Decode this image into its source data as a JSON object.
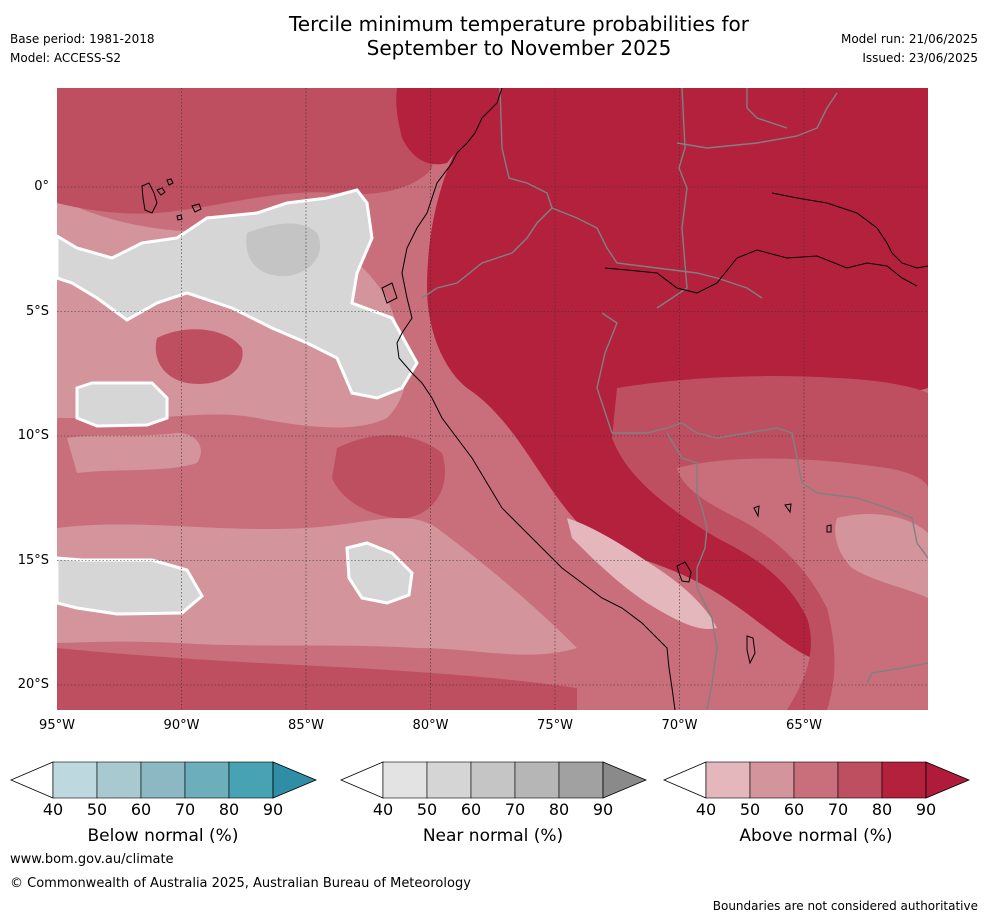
{
  "header": {
    "title_line1": "Tercile minimum temperature probabilities for",
    "title_line2": "September to November 2025",
    "base_period": "Base period: 1981-2018",
    "model": "Model: ACCESS-S2",
    "model_run": "Model run: 21/06/2025",
    "issued": "Issued: 23/06/2025"
  },
  "map": {
    "lon_labels": [
      "95°W",
      "90°W",
      "85°W",
      "80°W",
      "75°W",
      "70°W",
      "65°W"
    ],
    "lat_labels": [
      "0°",
      "5°S",
      "10°S",
      "15°S",
      "20°S"
    ],
    "colors": {
      "above_40": "#e3b7bc",
      "above_50": "#d4949c",
      "above_60": "#c96f7c",
      "above_70": "#be4f60",
      "above_80": "#b3213d",
      "near_normal": "#d6d6d6",
      "near_normal_dark": "#c4c4c4",
      "coast": "#000000",
      "border": "#808080"
    }
  },
  "legends": [
    {
      "name": "below",
      "title": "Below normal (%)",
      "ticks": [
        "40",
        "50",
        "60",
        "70",
        "80",
        "90"
      ],
      "colors": [
        "#bdd8de",
        "#a8c9cf",
        "#8bb8c3",
        "#6caeb9",
        "#47a3b4",
        "#2f8ea5"
      ]
    },
    {
      "name": "near",
      "title": "Near normal (%)",
      "ticks": [
        "40",
        "50",
        "60",
        "70",
        "80",
        "90"
      ],
      "colors": [
        "#e3e3e3",
        "#d5d5d5",
        "#c5c5c5",
        "#b6b6b6",
        "#a1a1a1",
        "#8a8a8a"
      ]
    },
    {
      "name": "above",
      "title": "Above normal (%)",
      "ticks": [
        "40",
        "50",
        "60",
        "70",
        "80",
        "90"
      ],
      "colors": [
        "#e3b7bc",
        "#d4949c",
        "#c96f7c",
        "#be4f60",
        "#b3213d",
        "#b01b3b"
      ]
    }
  ],
  "footer": {
    "website": "www.bom.gov.au/climate",
    "copyright": "© Commonwealth of Australia 2025, Australian Bureau of Meteorology",
    "disclaimer": "Boundaries are not considered authoritative"
  }
}
